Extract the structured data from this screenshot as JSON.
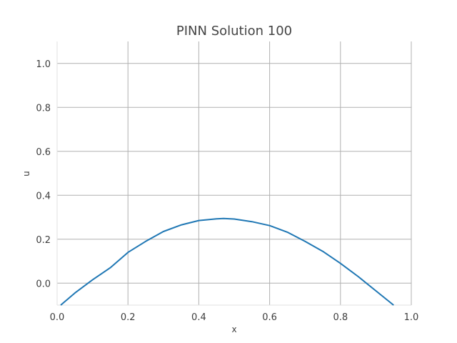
{
  "chart_data": {
    "type": "line",
    "title": "PINN Solution 100",
    "xlabel": "x",
    "ylabel": "u",
    "xlim": [
      0.0,
      1.0
    ],
    "ylim": [
      -0.1,
      1.1
    ],
    "grid": true,
    "legend": "none",
    "x_ticks": [
      "0.0",
      "0.2",
      "0.4",
      "0.6",
      "0.8",
      "1.0"
    ],
    "y_ticks": [
      "0.0",
      "0.2",
      "0.4",
      "0.6",
      "0.8",
      "1.0"
    ],
    "series": [
      {
        "color": "#1f77b4",
        "x": [
          0.01,
          0.05,
          0.1,
          0.15,
          0.2,
          0.25,
          0.3,
          0.35,
          0.4,
          0.45,
          0.47,
          0.5,
          0.55,
          0.6,
          0.65,
          0.7,
          0.75,
          0.8,
          0.85,
          0.9,
          0.95
        ],
        "y": [
          -0.1,
          -0.045,
          0.015,
          0.07,
          0.14,
          0.19,
          0.235,
          0.265,
          0.285,
          0.293,
          0.294,
          0.292,
          0.28,
          0.262,
          0.232,
          0.19,
          0.145,
          0.09,
          0.03,
          -0.035,
          -0.1
        ]
      }
    ]
  },
  "colors": {
    "grid": "#b0b0b0",
    "spine": "#e0e0e0",
    "text": "#3d3d3d"
  }
}
